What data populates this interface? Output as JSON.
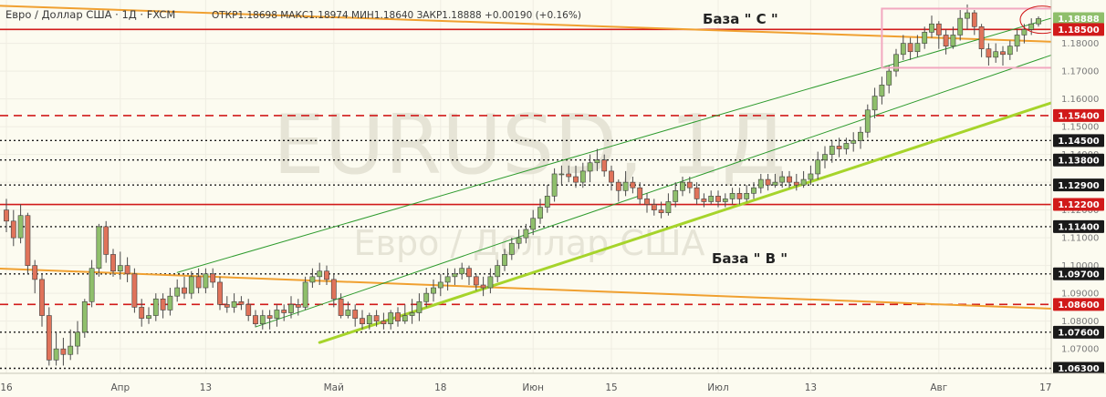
{
  "header": {
    "symbol": "Евро / Доллар США · 1Д · FXCM",
    "ohlc": "ОТКР1.18698 МАКС1.18974 МИН1.18640 ЗАКР1.18888 +0.00190 (+0.16%)"
  },
  "watermark": {
    "big": "EURUSD, 1Д",
    "small": "Евро / Доллар США"
  },
  "annotations": {
    "base_c": "База \" С \"",
    "base_b": "База \" В \""
  },
  "colors": {
    "up": "#8fbf6b",
    "down": "#e0735a",
    "solid_level": "#d11a1a",
    "trend_orange": "#f0a030",
    "support_lime": "#a6d42b",
    "channel_green": "#2e9b2e",
    "box_pink": "#f2a8c0",
    "forecast_arrow": "#e8621e"
  },
  "chart_data": {
    "type": "candlestick",
    "title": "Евро / Доллар США · 1Д · FXCM",
    "x_labels": [
      {
        "label": "16",
        "day": 0
      },
      {
        "label": "Апр",
        "day": 16
      },
      {
        "label": "13",
        "day": 28
      },
      {
        "label": "Май",
        "day": 46
      },
      {
        "label": "18",
        "day": 61
      },
      {
        "label": "Июн",
        "day": 74
      },
      {
        "label": "15",
        "day": 85
      },
      {
        "label": "Июл",
        "day": 100
      },
      {
        "label": "13",
        "day": 113
      },
      {
        "label": "Авг",
        "day": 131
      },
      {
        "label": "17",
        "day": 146
      }
    ],
    "y_ticks": [
      1.07,
      1.08,
      1.09,
      1.1,
      1.11,
      1.12,
      1.13,
      1.14,
      1.15,
      1.16,
      1.17,
      1.18
    ],
    "ylim": [
      1.0612,
      1.1956
    ],
    "price_levels": [
      {
        "value": 1.18888,
        "label": "1.18888",
        "style": "current"
      },
      {
        "value": 1.185,
        "label": "1.18500",
        "style": "solid"
      },
      {
        "value": 1.154,
        "label": "1.15400",
        "style": "dashed"
      },
      {
        "value": 1.145,
        "label": "1.14500",
        "style": "dotted"
      },
      {
        "value": 1.138,
        "label": "1.13800",
        "style": "dotted"
      },
      {
        "value": 1.129,
        "label": "1.12900",
        "style": "dotted"
      },
      {
        "value": 1.122,
        "label": "1.12200",
        "style": "solid"
      },
      {
        "value": 1.114,
        "label": "1.11400",
        "style": "dotted"
      },
      {
        "value": 1.097,
        "label": "1.09700",
        "style": "dotted"
      },
      {
        "value": 1.086,
        "label": "1.08600",
        "style": "dashed"
      },
      {
        "value": 1.076,
        "label": "1.07600",
        "style": "dotted"
      },
      {
        "value": 1.063,
        "label": "1.06300",
        "style": "dotted"
      }
    ],
    "trendlines": [
      {
        "kind": "orange-upper",
        "from": [
          -2,
          1.1936
        ],
        "to": [
          158,
          1.1796
        ]
      },
      {
        "kind": "orange-lower",
        "from": [
          -2,
          1.099
        ],
        "to": [
          158,
          1.0834
        ]
      },
      {
        "kind": "lime-support",
        "from": [
          44,
          1.0723
        ],
        "to": [
          156,
          1.1663
        ]
      },
      {
        "kind": "channel-upper",
        "from": [
          24,
          1.0975
        ],
        "to": [
          156,
          1.1959
        ]
      },
      {
        "kind": "channel-lower",
        "from": [
          35,
          1.0779
        ],
        "to": [
          156,
          1.1838
        ]
      }
    ],
    "box": {
      "day_from": 123,
      "day_to": 149,
      "low": 1.1712,
      "high": 1.1925
    },
    "ellipse": {
      "day": 145,
      "price": 1.1885
    },
    "forecast_arrow": {
      "from": [
        148,
        1.1833
      ],
      "to": [
        155,
        1.1695
      ]
    },
    "candles": [
      [
        0,
        1.12,
        1.116,
        1.124,
        1.112
      ],
      [
        1,
        1.116,
        1.11,
        1.12,
        1.107
      ],
      [
        2,
        1.11,
        1.118,
        1.122,
        1.108
      ],
      [
        3,
        1.118,
        1.1,
        1.119,
        1.097
      ],
      [
        4,
        1.1,
        1.095,
        1.102,
        1.09
      ],
      [
        5,
        1.095,
        1.082,
        1.097,
        1.078
      ],
      [
        6,
        1.082,
        1.066,
        1.085,
        1.064
      ],
      [
        7,
        1.066,
        1.07,
        1.076,
        1.064
      ],
      [
        8,
        1.07,
        1.068,
        1.074,
        1.064
      ],
      [
        9,
        1.068,
        1.071,
        1.077,
        1.066
      ],
      [
        10,
        1.071,
        1.076,
        1.08,
        1.068
      ],
      [
        11,
        1.076,
        1.087,
        1.088,
        1.074
      ],
      [
        12,
        1.087,
        1.099,
        1.102,
        1.085
      ],
      [
        13,
        1.099,
        1.114,
        1.115,
        1.096
      ],
      [
        14,
        1.114,
        1.104,
        1.116,
        1.101
      ],
      [
        15,
        1.104,
        1.098,
        1.106,
        1.096
      ],
      [
        16,
        1.098,
        1.1,
        1.105,
        1.095
      ],
      [
        17,
        1.1,
        1.097,
        1.103,
        1.094
      ],
      [
        18,
        1.097,
        1.085,
        1.099,
        1.083
      ],
      [
        19,
        1.085,
        1.081,
        1.088,
        1.078
      ],
      [
        20,
        1.081,
        1.082,
        1.085,
        1.079
      ],
      [
        21,
        1.082,
        1.088,
        1.09,
        1.08
      ],
      [
        22,
        1.088,
        1.084,
        1.09,
        1.081
      ],
      [
        23,
        1.084,
        1.089,
        1.092,
        1.082
      ],
      [
        24,
        1.089,
        1.092,
        1.095,
        1.087
      ],
      [
        25,
        1.092,
        1.09,
        1.096,
        1.088
      ],
      [
        26,
        1.09,
        1.096,
        1.098,
        1.088
      ],
      [
        27,
        1.096,
        1.092,
        1.099,
        1.09
      ],
      [
        28,
        1.092,
        1.097,
        1.099,
        1.09
      ],
      [
        29,
        1.097,
        1.094,
        1.099,
        1.092
      ],
      [
        30,
        1.094,
        1.086,
        1.096,
        1.084
      ],
      [
        31,
        1.086,
        1.085,
        1.089,
        1.083
      ],
      [
        32,
        1.085,
        1.087,
        1.09,
        1.083
      ],
      [
        33,
        1.087,
        1.086,
        1.089,
        1.084
      ],
      [
        34,
        1.086,
        1.082,
        1.088,
        1.08
      ],
      [
        35,
        1.082,
        1.079,
        1.084,
        1.078
      ],
      [
        36,
        1.079,
        1.082,
        1.084,
        1.077
      ],
      [
        37,
        1.082,
        1.081,
        1.084,
        1.077
      ],
      [
        38,
        1.081,
        1.084,
        1.086,
        1.078
      ],
      [
        39,
        1.084,
        1.083,
        1.086,
        1.08
      ],
      [
        40,
        1.083,
        1.086,
        1.089,
        1.081
      ],
      [
        41,
        1.086,
        1.085,
        1.088,
        1.082
      ],
      [
        42,
        1.085,
        1.094,
        1.096,
        1.084
      ],
      [
        43,
        1.094,
        1.096,
        1.099,
        1.092
      ],
      [
        44,
        1.096,
        1.098,
        1.101,
        1.093
      ],
      [
        45,
        1.098,
        1.095,
        1.1,
        1.093
      ],
      [
        46,
        1.095,
        1.088,
        1.097,
        1.085
      ],
      [
        47,
        1.088,
        1.082,
        1.09,
        1.081
      ],
      [
        48,
        1.082,
        1.084,
        1.087,
        1.081
      ],
      [
        49,
        1.084,
        1.081,
        1.086,
        1.078
      ],
      [
        50,
        1.081,
        1.079,
        1.084,
        1.077
      ],
      [
        51,
        1.079,
        1.082,
        1.083,
        1.077
      ],
      [
        52,
        1.082,
        1.08,
        1.084,
        1.078
      ],
      [
        53,
        1.08,
        1.079,
        1.083,
        1.077
      ],
      [
        54,
        1.079,
        1.083,
        1.084,
        1.077
      ],
      [
        55,
        1.083,
        1.08,
        1.085,
        1.078
      ],
      [
        56,
        1.08,
        1.082,
        1.086,
        1.079
      ],
      [
        57,
        1.082,
        1.083,
        1.088,
        1.079
      ],
      [
        58,
        1.083,
        1.087,
        1.09,
        1.08
      ],
      [
        59,
        1.087,
        1.09,
        1.092,
        1.085
      ],
      [
        60,
        1.09,
        1.092,
        1.095,
        1.087
      ],
      [
        61,
        1.092,
        1.094,
        1.097,
        1.089
      ],
      [
        62,
        1.094,
        1.096,
        1.099,
        1.091
      ],
      [
        63,
        1.096,
        1.097,
        1.099,
        1.093
      ],
      [
        64,
        1.097,
        1.099,
        1.101,
        1.095
      ],
      [
        65,
        1.099,
        1.096,
        1.1,
        1.093
      ],
      [
        66,
        1.096,
        1.093,
        1.097,
        1.091
      ],
      [
        67,
        1.093,
        1.092,
        1.096,
        1.089
      ],
      [
        68,
        1.092,
        1.096,
        1.099,
        1.09
      ],
      [
        69,
        1.096,
        1.1,
        1.102,
        1.094
      ],
      [
        70,
        1.1,
        1.104,
        1.106,
        1.098
      ],
      [
        71,
        1.104,
        1.108,
        1.11,
        1.102
      ],
      [
        72,
        1.108,
        1.11,
        1.113,
        1.106
      ],
      [
        73,
        1.11,
        1.113,
        1.115,
        1.108
      ],
      [
        74,
        1.113,
        1.117,
        1.12,
        1.111
      ],
      [
        75,
        1.117,
        1.121,
        1.124,
        1.115
      ],
      [
        76,
        1.121,
        1.125,
        1.129,
        1.119
      ],
      [
        77,
        1.125,
        1.133,
        1.135,
        1.123
      ],
      [
        78,
        1.133,
        1.133,
        1.136,
        1.129
      ],
      [
        79,
        1.133,
        1.132,
        1.136,
        1.13
      ],
      [
        80,
        1.132,
        1.13,
        1.136,
        1.128
      ],
      [
        81,
        1.13,
        1.134,
        1.137,
        1.128
      ],
      [
        82,
        1.134,
        1.137,
        1.14,
        1.13
      ],
      [
        83,
        1.137,
        1.138,
        1.142,
        1.134
      ],
      [
        84,
        1.138,
        1.134,
        1.14,
        1.132
      ],
      [
        85,
        1.134,
        1.13,
        1.136,
        1.127
      ],
      [
        86,
        1.13,
        1.127,
        1.131,
        1.123
      ],
      [
        87,
        1.127,
        1.13,
        1.134,
        1.125
      ],
      [
        88,
        1.13,
        1.128,
        1.132,
        1.126
      ],
      [
        89,
        1.128,
        1.124,
        1.13,
        1.122
      ],
      [
        90,
        1.124,
        1.122,
        1.126,
        1.119
      ],
      [
        91,
        1.122,
        1.12,
        1.124,
        1.118
      ],
      [
        92,
        1.12,
        1.119,
        1.123,
        1.117
      ],
      [
        93,
        1.119,
        1.123,
        1.126,
        1.118
      ],
      [
        94,
        1.123,
        1.127,
        1.13,
        1.121
      ],
      [
        95,
        1.127,
        1.13,
        1.132,
        1.125
      ],
      [
        96,
        1.13,
        1.128,
        1.132,
        1.126
      ],
      [
        97,
        1.128,
        1.124,
        1.13,
        1.122
      ],
      [
        98,
        1.124,
        1.123,
        1.126,
        1.121
      ],
      [
        99,
        1.123,
        1.125,
        1.127,
        1.122
      ],
      [
        100,
        1.125,
        1.123,
        1.127,
        1.121
      ],
      [
        101,
        1.123,
        1.124,
        1.126,
        1.121
      ],
      [
        102,
        1.124,
        1.126,
        1.128,
        1.122
      ],
      [
        103,
        1.126,
        1.124,
        1.128,
        1.122
      ],
      [
        104,
        1.124,
        1.126,
        1.129,
        1.123
      ],
      [
        105,
        1.126,
        1.128,
        1.13,
        1.124
      ],
      [
        106,
        1.128,
        1.131,
        1.133,
        1.126
      ],
      [
        107,
        1.131,
        1.129,
        1.133,
        1.127
      ],
      [
        108,
        1.129,
        1.13,
        1.133,
        1.128
      ],
      [
        109,
        1.13,
        1.132,
        1.134,
        1.128
      ],
      [
        110,
        1.132,
        1.13,
        1.134,
        1.128
      ],
      [
        111,
        1.13,
        1.129,
        1.133,
        1.127
      ],
      [
        112,
        1.129,
        1.131,
        1.134,
        1.128
      ],
      [
        113,
        1.131,
        1.133,
        1.136,
        1.129
      ],
      [
        114,
        1.133,
        1.138,
        1.141,
        1.131
      ],
      [
        115,
        1.138,
        1.14,
        1.143,
        1.135
      ],
      [
        116,
        1.14,
        1.143,
        1.145,
        1.137
      ],
      [
        117,
        1.143,
        1.142,
        1.146,
        1.139
      ],
      [
        118,
        1.142,
        1.144,
        1.146,
        1.14
      ],
      [
        119,
        1.144,
        1.145,
        1.148,
        1.141
      ],
      [
        120,
        1.145,
        1.148,
        1.15,
        1.142
      ],
      [
        121,
        1.148,
        1.156,
        1.158,
        1.146
      ],
      [
        122,
        1.156,
        1.161,
        1.164,
        1.153
      ],
      [
        123,
        1.161,
        1.165,
        1.168,
        1.158
      ],
      [
        124,
        1.165,
        1.17,
        1.172,
        1.162
      ],
      [
        125,
        1.17,
        1.176,
        1.178,
        1.168
      ],
      [
        126,
        1.176,
        1.18,
        1.183,
        1.174
      ],
      [
        127,
        1.18,
        1.177,
        1.182,
        1.174
      ],
      [
        128,
        1.177,
        1.18,
        1.183,
        1.175
      ],
      [
        129,
        1.18,
        1.184,
        1.186,
        1.178
      ],
      [
        130,
        1.184,
        1.187,
        1.19,
        1.182
      ],
      [
        131,
        1.187,
        1.183,
        1.188,
        1.178
      ],
      [
        132,
        1.183,
        1.179,
        1.185,
        1.176
      ],
      [
        133,
        1.179,
        1.183,
        1.186,
        1.178
      ],
      [
        134,
        1.183,
        1.189,
        1.192,
        1.181
      ],
      [
        135,
        1.189,
        1.191,
        1.194,
        1.185
      ],
      [
        136,
        1.191,
        1.186,
        1.192,
        1.183
      ],
      [
        137,
        1.186,
        1.178,
        1.187,
        1.175
      ],
      [
        138,
        1.178,
        1.175,
        1.18,
        1.172
      ],
      [
        139,
        1.175,
        1.177,
        1.18,
        1.173
      ],
      [
        140,
        1.177,
        1.176,
        1.179,
        1.172
      ],
      [
        141,
        1.176,
        1.179,
        1.181,
        1.174
      ],
      [
        142,
        1.179,
        1.183,
        1.185,
        1.177
      ],
      [
        143,
        1.183,
        1.185,
        1.187,
        1.18
      ],
      [
        144,
        1.185,
        1.187,
        1.189,
        1.183
      ],
      [
        145,
        1.187,
        1.1889,
        1.1897,
        1.186
      ]
    ]
  }
}
